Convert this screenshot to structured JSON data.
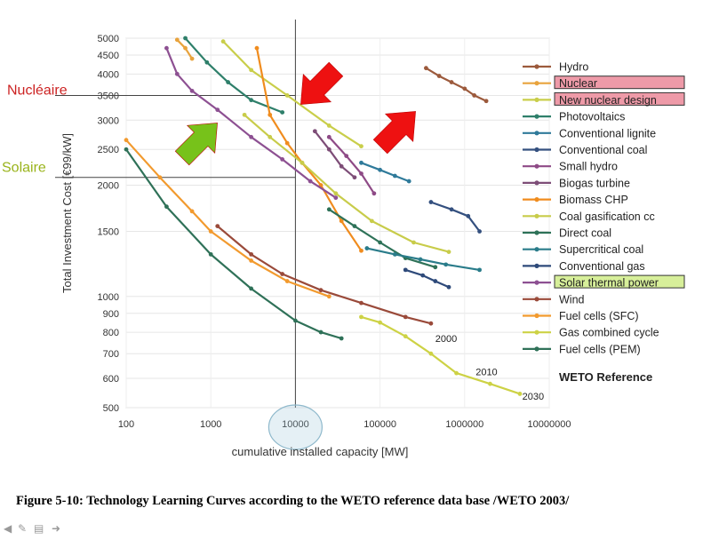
{
  "chart_data": {
    "type": "line",
    "x_scale": "log",
    "y_scale": "log",
    "xlim": [
      100,
      10000000
    ],
    "ylim": [
      500,
      5000
    ],
    "xlabel": "cumulative installed capacity [MW]",
    "ylabel": "Total Investment Cost [€99/kW]",
    "x_ticks": [
      "100",
      "1000",
      "10000",
      "100000",
      "1000000",
      "10000000"
    ],
    "y_ticks": [
      {
        "v": 5000,
        "t": "5000"
      },
      {
        "v": 4500,
        "t": "4500"
      },
      {
        "v": 4000,
        "t": "4000"
      },
      {
        "v": 3500,
        "t": "3500"
      },
      {
        "v": 3000,
        "t": "3000"
      },
      {
        "v": 2500,
        "t": "2500"
      },
      {
        "v": 2000,
        "t": "2000"
      },
      {
        "v": 1500,
        "t": "1500"
      },
      {
        "v": 1000,
        "t": "1000"
      },
      {
        "v": 900,
        "t": "900"
      },
      {
        "v": 800,
        "t": "800"
      },
      {
        "v": 700,
        "t": "700"
      },
      {
        "v": 600,
        "t": "600"
      },
      {
        "v": 500,
        "t": "500"
      }
    ],
    "legend_title": "WETO Reference",
    "legend_position": "right",
    "series": [
      {
        "name": "Hydro",
        "color": "#9c5a3c",
        "highlight": false,
        "points": [
          [
            350000,
            4150
          ],
          [
            500000,
            3950
          ],
          [
            700000,
            3800
          ],
          [
            1000000,
            3650
          ],
          [
            1300000,
            3500
          ],
          [
            1800000,
            3380
          ]
        ]
      },
      {
        "name": "Nuclear",
        "color": "#e8a33d",
        "highlight": true,
        "points": [
          [
            400,
            4950
          ],
          [
            500,
            4700
          ],
          [
            600,
            4400
          ]
        ]
      },
      {
        "name": "New nuclear design",
        "color": "#c9ce4a",
        "highlight": true,
        "points": [
          [
            1400,
            4900
          ],
          [
            3000,
            4100
          ],
          [
            8000,
            3500
          ],
          [
            25000,
            2900
          ],
          [
            60000,
            2550
          ]
        ]
      },
      {
        "name": "Photovoltaics",
        "color": "#2e7f6a",
        "highlight": false,
        "points": [
          [
            500,
            5000
          ],
          [
            900,
            4300
          ],
          [
            1600,
            3800
          ],
          [
            3000,
            3400
          ],
          [
            7000,
            3150
          ]
        ]
      },
      {
        "name": "Conventional lignite",
        "color": "#2f7a9a",
        "highlight": false,
        "points": [
          [
            60000,
            2300
          ],
          [
            100000,
            2200
          ],
          [
            150000,
            2120
          ],
          [
            220000,
            2050
          ]
        ]
      },
      {
        "name": "Conventional coal",
        "color": "#34507f",
        "highlight": false,
        "points": [
          [
            400000,
            1800
          ],
          [
            700000,
            1720
          ],
          [
            1100000,
            1650
          ],
          [
            1500000,
            1500
          ]
        ]
      },
      {
        "name": "Small hydro",
        "color": "#8e4a86",
        "highlight": false,
        "points": [
          [
            25000,
            2700
          ],
          [
            40000,
            2400
          ],
          [
            60000,
            2150
          ],
          [
            85000,
            1900
          ]
        ]
      },
      {
        "name": "Biogas turbine",
        "color": "#7d4d77",
        "highlight": false,
        "points": [
          [
            17000,
            2800
          ],
          [
            25000,
            2500
          ],
          [
            35000,
            2250
          ],
          [
            50000,
            2100
          ]
        ]
      },
      {
        "name": "Biomass CHP",
        "color": "#f08c1e",
        "highlight": false,
        "points": [
          [
            3500,
            4700
          ],
          [
            5000,
            3100
          ],
          [
            8000,
            2600
          ],
          [
            12000,
            2300
          ],
          [
            20000,
            2000
          ],
          [
            35000,
            1600
          ],
          [
            60000,
            1330
          ]
        ]
      },
      {
        "name": "Coal gasification cc",
        "color": "#c8cc4a",
        "highlight": false,
        "points": [
          [
            2500,
            3100
          ],
          [
            5000,
            2700
          ],
          [
            12000,
            2300
          ],
          [
            30000,
            1900
          ],
          [
            80000,
            1600
          ],
          [
            250000,
            1400
          ],
          [
            650000,
            1320
          ]
        ]
      },
      {
        "name": "Direct coal",
        "color": "#2e7258",
        "highlight": false,
        "points": [
          [
            25000,
            1720
          ],
          [
            50000,
            1550
          ],
          [
            100000,
            1400
          ],
          [
            200000,
            1270
          ],
          [
            450000,
            1200
          ]
        ]
      },
      {
        "name": "Supercritical coal",
        "color": "#2a7c8a",
        "highlight": false,
        "points": [
          [
            70000,
            1350
          ],
          [
            150000,
            1300
          ],
          [
            300000,
            1260
          ],
          [
            600000,
            1220
          ],
          [
            1500000,
            1180
          ]
        ]
      },
      {
        "name": "Conventional gas",
        "color": "#2e4a7a",
        "highlight": false,
        "points": [
          [
            200000,
            1180
          ],
          [
            320000,
            1140
          ],
          [
            450000,
            1100
          ],
          [
            650000,
            1060
          ]
        ]
      },
      {
        "name": "Solar thermal power",
        "color": "#8d5092",
        "highlight": true,
        "points": [
          [
            300,
            4700
          ],
          [
            400,
            4000
          ],
          [
            600,
            3600
          ],
          [
            1200,
            3200
          ],
          [
            3000,
            2700
          ],
          [
            7000,
            2350
          ],
          [
            15000,
            2050
          ],
          [
            30000,
            1850
          ]
        ]
      },
      {
        "name": "Wind",
        "color": "#9a4a3a",
        "highlight": false,
        "points": [
          [
            1200,
            1550
          ],
          [
            3000,
            1300
          ],
          [
            7000,
            1150
          ],
          [
            20000,
            1040
          ],
          [
            60000,
            960
          ],
          [
            200000,
            880
          ],
          [
            400000,
            845
          ]
        ]
      },
      {
        "name": "Fuel cells (SFC)",
        "color": "#f29a2e",
        "highlight": false,
        "points": [
          [
            100,
            2650
          ],
          [
            250,
            2100
          ],
          [
            600,
            1700
          ],
          [
            1000,
            1500
          ],
          [
            3000,
            1250
          ],
          [
            8000,
            1100
          ],
          [
            25000,
            1000
          ]
        ]
      },
      {
        "name": "Gas combined cycle",
        "color": "#cdd245",
        "highlight": false,
        "points": [
          [
            60000,
            880
          ],
          [
            100000,
            850
          ],
          [
            200000,
            780
          ],
          [
            400000,
            700
          ],
          [
            800000,
            620
          ],
          [
            2000000,
            580
          ],
          [
            4500000,
            545
          ]
        ]
      },
      {
        "name": "Fuel cells (PEM)",
        "color": "#2f7158",
        "highlight": false,
        "points": [
          [
            100,
            2500
          ],
          [
            300,
            1750
          ],
          [
            1000,
            1300
          ],
          [
            3000,
            1050
          ],
          [
            10000,
            860
          ],
          [
            20000,
            800
          ],
          [
            35000,
            770
          ]
        ]
      }
    ],
    "year_labels": [
      {
        "text": "2000",
        "x": 450000,
        "y": 770
      },
      {
        "text": "2010",
        "x": 1350000,
        "y": 625
      },
      {
        "text": "2030",
        "x": 4800000,
        "y": 537
      }
    ],
    "reference_lines": {
      "vertical_x": 10000,
      "horizontal_y": [
        3500,
        2100
      ]
    },
    "side_labels": [
      {
        "text": "Nucléaire",
        "y": 3500,
        "color": "#cc2222"
      },
      {
        "text": "Solaire",
        "y": 2100,
        "color": "#99b31a"
      }
    ],
    "annotations": [
      {
        "kind": "arrow",
        "direction": "down-left",
        "color": "#ee1111"
      },
      {
        "kind": "arrow",
        "direction": "up-right",
        "color": "#ee1111"
      },
      {
        "kind": "arrow",
        "direction": "up-right",
        "color": "#77c21a"
      },
      {
        "kind": "circle-highlight",
        "target": "10000"
      }
    ]
  },
  "caption": "Figure 5-10: Technology Learning Curves according to the WETO reference data base /WETO 2003/",
  "slide_controls": [
    "arrow-left-icon",
    "pen-icon",
    "menu-icon",
    "arrow-right-icon"
  ]
}
